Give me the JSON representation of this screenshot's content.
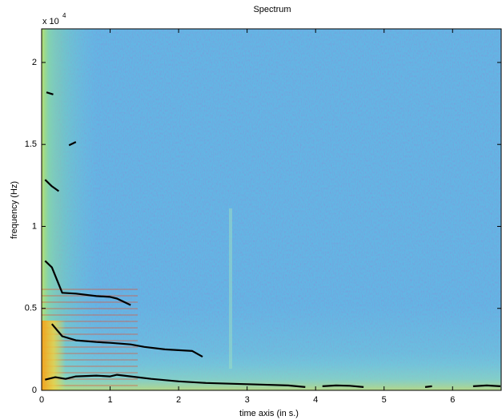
{
  "chart_data": {
    "type": "spectrogram",
    "title": "Spectrum",
    "x_label": "time axis (in s.)",
    "y_label": "frequency (Hz)",
    "y_multiplier": {
      "base": "x 10",
      "exponent": "4"
    },
    "xlim": [
      0,
      6.71
    ],
    "ylim": [
      0,
      22050
    ],
    "xticks": [
      0,
      1,
      2,
      3,
      4,
      5,
      6
    ],
    "yticks": [
      0,
      {
        "value": 5000,
        "label": "0.5"
      },
      {
        "value": 10000,
        "label": "1"
      },
      {
        "value": 15000,
        "label": "1.5"
      },
      {
        "value": 20000,
        "label": "2"
      }
    ],
    "series": [
      {
        "color": "#000000",
        "x": [
          0.05,
          0.2,
          0.35,
          0.5,
          0.8,
          1.0,
          1.1,
          1.3,
          1.6,
          2.0,
          2.4,
          2.8,
          3.2,
          3.6,
          3.85,
          4.05,
          4.1,
          4.3,
          4.5,
          4.7,
          5.55,
          5.6,
          5.7,
          6.25,
          6.3,
          6.5,
          6.7
        ],
        "values": [
          650,
          800,
          700,
          850,
          900,
          850,
          950,
          850,
          700,
          550,
          450,
          400,
          350,
          300,
          200,
          null,
          250,
          300,
          280,
          200,
          null,
          200,
          250,
          null,
          250,
          300,
          250
        ]
      },
      {
        "color": "#000000",
        "x": [
          0.15,
          0.3,
          0.5,
          0.8,
          1.0,
          1.3,
          1.5,
          1.8,
          2.0,
          2.2,
          2.35
        ],
        "values": [
          4050,
          3300,
          3050,
          2950,
          2900,
          2800,
          2650,
          2500,
          2450,
          2400,
          2050
        ]
      },
      {
        "color": "#000000",
        "x": [
          0.05,
          0.15,
          0.3,
          0.5,
          0.8,
          1.0,
          1.1,
          1.3
        ],
        "values": [
          7900,
          7500,
          5950,
          5900,
          5750,
          5700,
          5600,
          5200
        ]
      },
      {
        "color": "#000000",
        "x": [
          0.05,
          0.15,
          0.25
        ],
        "values": [
          12850,
          12450,
          12150
        ]
      },
      {
        "color": "#000000",
        "x": [
          0.4,
          0.5
        ],
        "values": [
          14950,
          15150
        ]
      },
      {
        "color": "#000000",
        "x": [
          0.07,
          0.17
        ],
        "values": [
          18180,
          18050
        ]
      }
    ]
  }
}
